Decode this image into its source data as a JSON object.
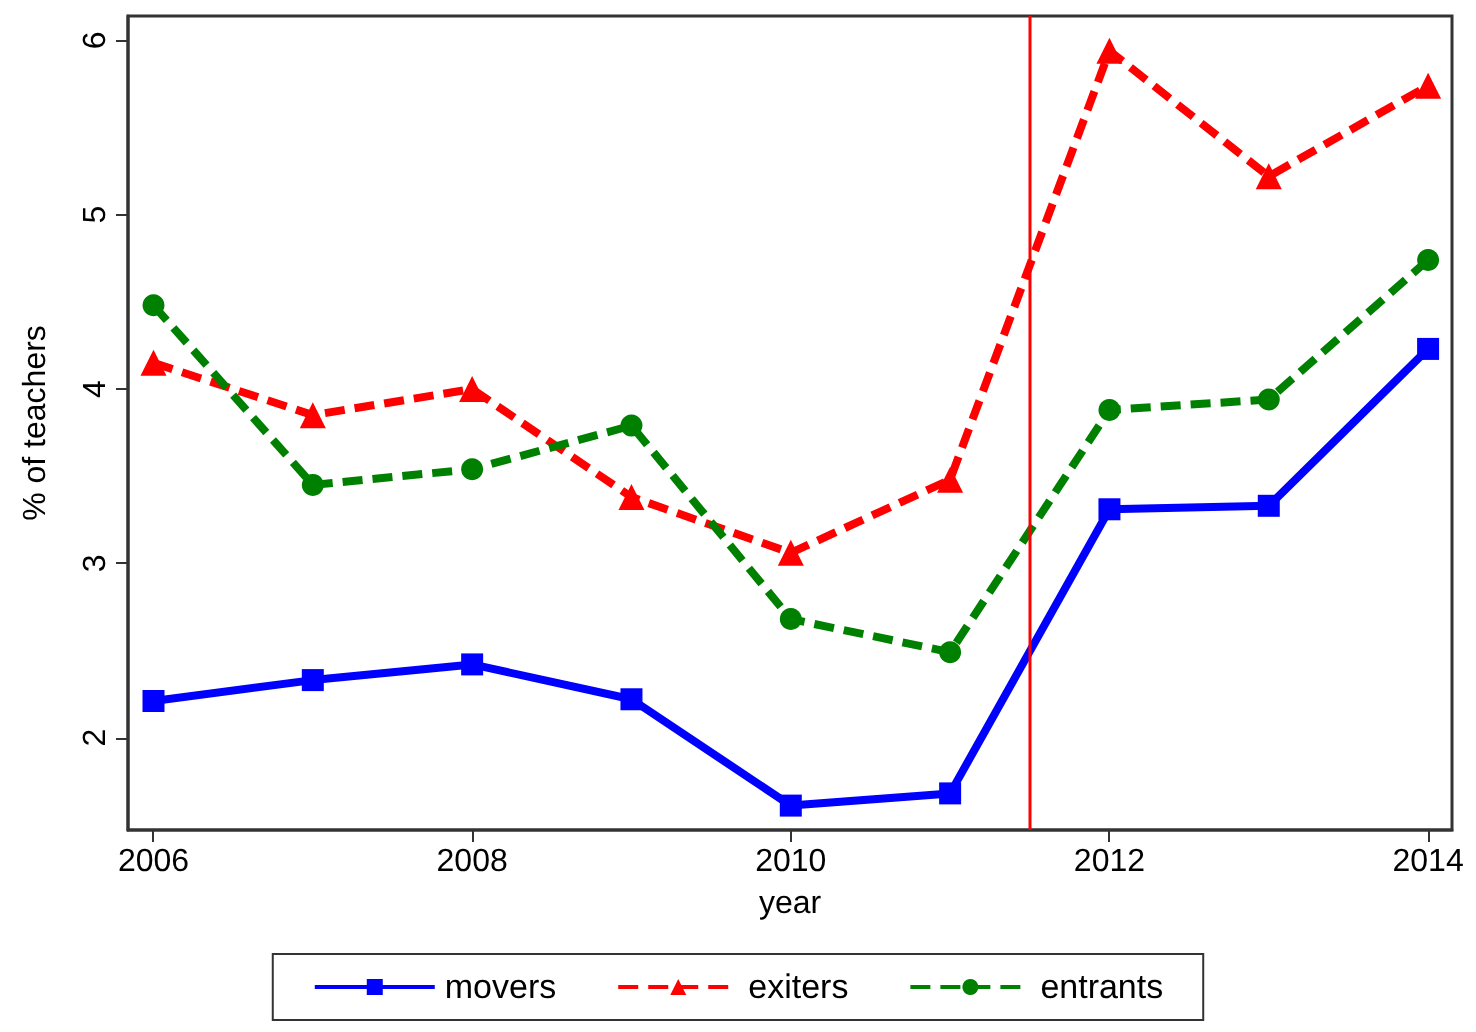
{
  "chart_data": {
    "type": "line",
    "xlabel": "year",
    "ylabel": "% of teachers",
    "x": [
      2006,
      2007,
      2008,
      2009,
      2010,
      2011,
      2012,
      2013,
      2014
    ],
    "series": [
      {
        "name": "movers",
        "color": "#0000ff",
        "marker": "square",
        "line_style": "solid",
        "values": [
          2.21,
          2.33,
          2.42,
          2.22,
          1.61,
          1.68,
          3.31,
          3.33,
          4.23
        ]
      },
      {
        "name": "exiters",
        "color": "#ff0000",
        "marker": "triangle",
        "line_style": "dashed",
        "values": [
          4.15,
          3.85,
          4.0,
          3.38,
          3.06,
          3.48,
          5.94,
          5.22,
          5.74
        ]
      },
      {
        "name": "entrants",
        "color": "#008000",
        "marker": "circle",
        "line_style": "dashed",
        "values": [
          4.48,
          3.45,
          3.54,
          3.79,
          2.68,
          2.49,
          3.88,
          3.94,
          4.74
        ]
      }
    ],
    "xlim": [
      2005.84,
      2014.15
    ],
    "xticks": [
      2006,
      2008,
      2010,
      2012,
      2014
    ],
    "ylim": [
      1.47,
      6.14
    ],
    "yticks": [
      2,
      3,
      4,
      5,
      6
    ],
    "ref_lines": [
      {
        "axis": "x",
        "value": 2011.5,
        "color": "#ff0000"
      }
    ],
    "grid": false,
    "legend": "bottom"
  }
}
